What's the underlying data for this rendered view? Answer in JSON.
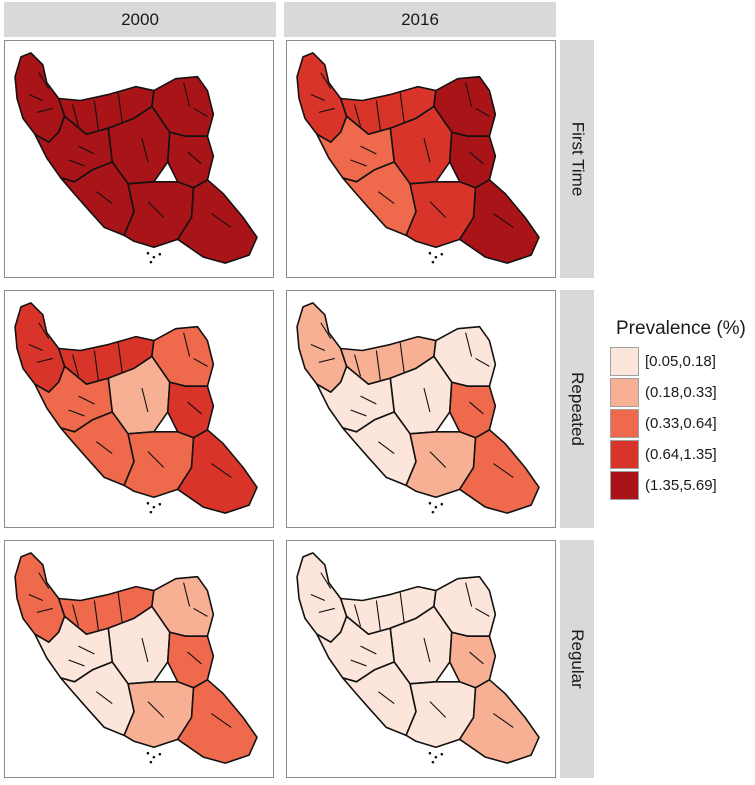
{
  "columns": [
    "2000",
    "2016"
  ],
  "rows": [
    "First Time",
    "Repeated",
    "Regular"
  ],
  "legend": {
    "title": "Prevalence (%)",
    "classes": [
      {
        "label": "[0.05,0.18]",
        "color": "#fce6dc"
      },
      {
        "label": "(0.18,0.33]",
        "color": "#f7b094"
      },
      {
        "label": "(0.33,0.64]",
        "color": "#ef6a4c"
      },
      {
        "label": "(0.64,1.35]",
        "color": "#d9342a"
      },
      {
        "label": "(1.35,5.69]",
        "color": "#a81418"
      }
    ]
  },
  "maps": [
    {
      "column": "2000",
      "row": "First Time",
      "regions": {
        "nw": 4,
        "north": 4,
        "ne": 4,
        "center": 4,
        "east": 4,
        "west": 4,
        "sw": 4,
        "south": 4,
        "se": 4
      }
    },
    {
      "column": "2016",
      "row": "First Time",
      "regions": {
        "nw": 3,
        "north": 3,
        "ne": 4,
        "center": 3,
        "east": 4,
        "west": 2,
        "sw": 2,
        "south": 3,
        "se": 4
      }
    },
    {
      "column": "2000",
      "row": "Repeated",
      "regions": {
        "nw": 3,
        "north": 3,
        "ne": 2,
        "center": 1,
        "east": 3,
        "west": 2,
        "sw": 2,
        "south": 2,
        "se": 3
      }
    },
    {
      "column": "2016",
      "row": "Repeated",
      "regions": {
        "nw": 1,
        "north": 1,
        "ne": 0,
        "center": 0,
        "east": 2,
        "west": 0,
        "sw": 0,
        "south": 1,
        "se": 2
      }
    },
    {
      "column": "2000",
      "row": "Regular",
      "regions": {
        "nw": 2,
        "north": 2,
        "ne": 1,
        "center": 0,
        "east": 2,
        "west": 0,
        "sw": 0,
        "south": 1,
        "se": 2
      }
    },
    {
      "column": "2016",
      "row": "Regular",
      "regions": {
        "nw": 0,
        "north": 0,
        "ne": 0,
        "center": 0,
        "east": 1,
        "west": 0,
        "sw": 0,
        "south": 0,
        "se": 1
      }
    }
  ]
}
